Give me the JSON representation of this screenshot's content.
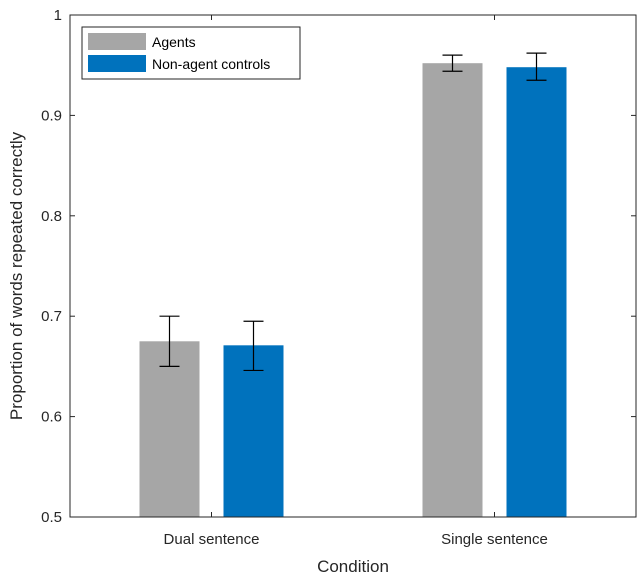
{
  "chart_data": {
    "type": "bar",
    "title": "",
    "xlabel": "Condition",
    "ylabel": "Proportion of words repeated correctly",
    "categories": [
      "Dual sentence",
      "Single sentence"
    ],
    "ylim": [
      0.5,
      1
    ],
    "yticks": [
      "0.5",
      "0.6",
      "0.7",
      "0.8",
      "0.9",
      "1"
    ],
    "legend_position": "top-left",
    "grid": false,
    "series": [
      {
        "name": "Agents",
        "color": "#A6A6A6",
        "values": [
          0.675,
          0.952
        ],
        "error_low": [
          0.65,
          0.944
        ],
        "error_high": [
          0.7,
          0.96
        ]
      },
      {
        "name": "Non-agent controls",
        "color": "#0072BD",
        "values": [
          0.671,
          0.948
        ],
        "error_low": [
          0.646,
          0.935
        ],
        "error_high": [
          0.695,
          0.962
        ]
      }
    ]
  }
}
